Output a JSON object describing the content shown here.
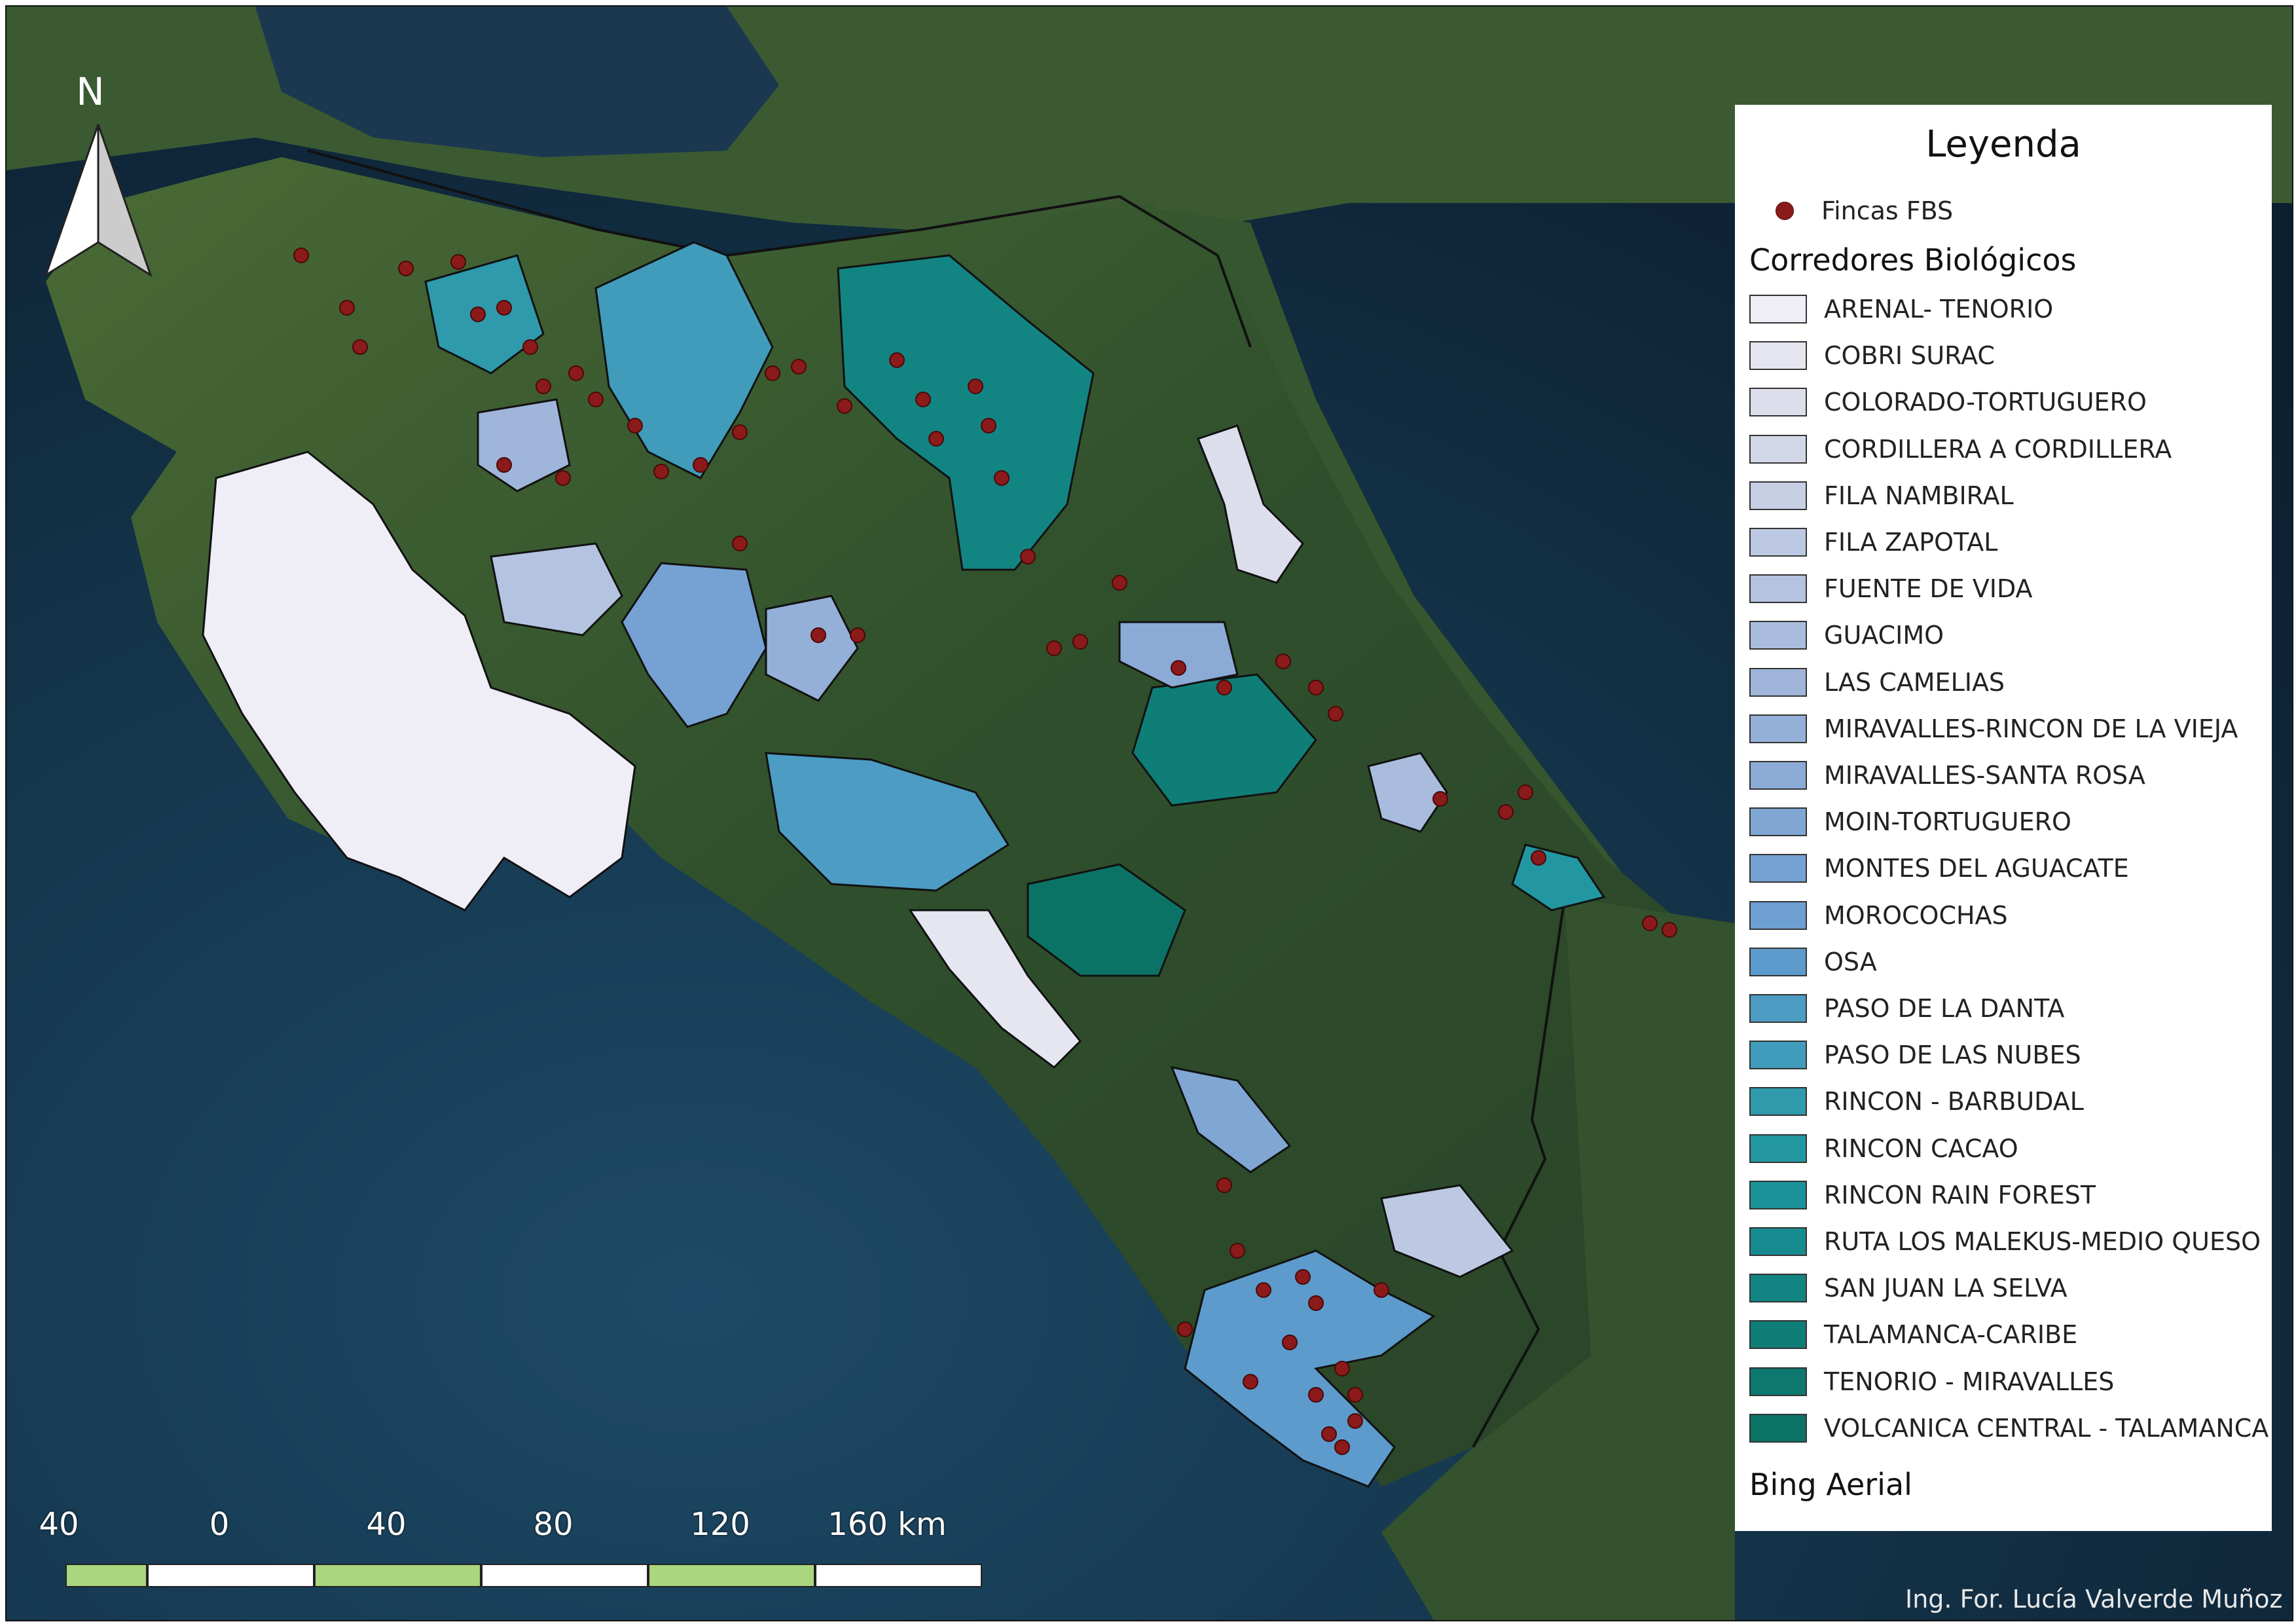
{
  "legend": {
    "title": "Leyenda",
    "points_label": "Fincas FBS",
    "points_color": "#8b1a1a",
    "group_label": "Corredores Biológicos",
    "basemap_label": "Bing Aerial",
    "corridors": [
      {
        "name": "ARENAL- TENORIO",
        "color": "#efedf6"
      },
      {
        "name": "COBRI SURAC",
        "color": "#e6e6f1"
      },
      {
        "name": "COLORADO-TORTUGUERO",
        "color": "#dcdeec"
      },
      {
        "name": "CORDILLERA A CORDILLERA",
        "color": "#d2d7e8"
      },
      {
        "name": "FILA NAMBIRAL",
        "color": "#c6cfe4"
      },
      {
        "name": "FILA ZAPOTAL",
        "color": "#bdc9e2"
      },
      {
        "name": "FUENTE DE VIDA",
        "color": "#b4c3e0"
      },
      {
        "name": "GUACIMO",
        "color": "#a9bcdd"
      },
      {
        "name": "LAS CAMELIAS",
        "color": "#9fb6da"
      },
      {
        "name": "MIRAVALLES-RINCON DE LA VIEJA",
        "color": "#95b0d8"
      },
      {
        "name": "MIRAVALLES-SANTA ROSA",
        "color": "#8babd6"
      },
      {
        "name": "MOIN-TORTUGUERO",
        "color": "#80a6d4"
      },
      {
        "name": "MONTES DEL AGUACATE",
        "color": "#76a2d3"
      },
      {
        "name": "MOROCOCHAS",
        "color": "#6d9fd2"
      },
      {
        "name": "OSA",
        "color": "#5c9bcc"
      },
      {
        "name": "PASO DE LA DANTA",
        "color": "#4d9cc4"
      },
      {
        "name": "PASO DE LAS NUBES",
        "color": "#409cba"
      },
      {
        "name": "RINCON - BARBUDAL",
        "color": "#2e9aac"
      },
      {
        "name": "RINCON CACAO",
        "color": "#2297a2"
      },
      {
        "name": "RINCON RAIN FOREST",
        "color": "#1b9299"
      },
      {
        "name": "RUTA LOS MALEKUS-MEDIO QUESO",
        "color": "#168c90"
      },
      {
        "name": "SAN JUAN LA SELVA",
        "color": "#128583"
      },
      {
        "name": "TALAMANCA-CARIBE",
        "color": "#0f7e77"
      },
      {
        "name": "TENORIO - MIRAVALLES",
        "color": "#0d786f"
      },
      {
        "name": "VOLCANICA CENTRAL - TALAMANCA",
        "color": "#0b7266"
      }
    ]
  },
  "scale_bar": {
    "labels": [
      "40",
      "0",
      "40",
      "80",
      "120",
      "160 km"
    ],
    "colors": [
      "#a9d67e",
      "#ffffff",
      "#a9d67e",
      "#ffffff",
      "#a9d67e",
      "#ffffff"
    ]
  },
  "north_arrow": {
    "label": "N"
  },
  "credit": "Ing. For. Lucía Valverde Muñoz",
  "colors": {
    "ocean": "#10263a",
    "land": "#2f4a2a",
    "farm_point": "#8b1a1a"
  }
}
